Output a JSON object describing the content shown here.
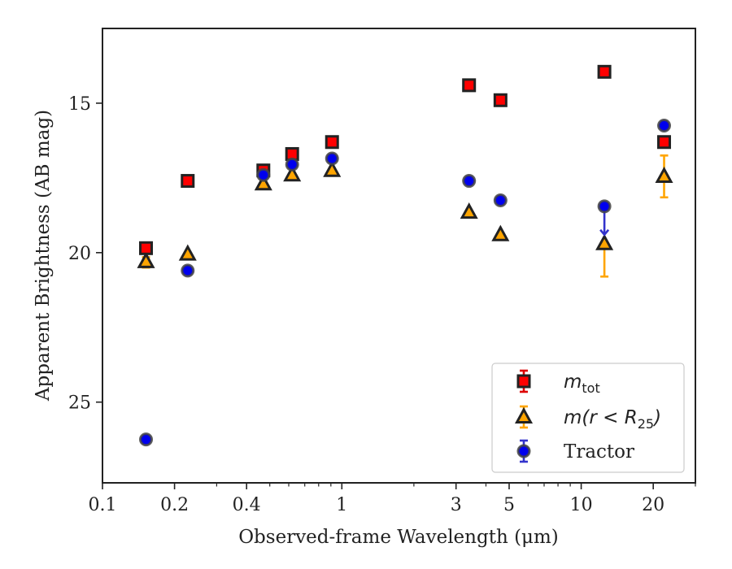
{
  "chart_data": {
    "type": "scatter",
    "title": "",
    "xlabel": "Observed-frame Wavelength (μm)",
    "ylabel": "Apparent Brightness (AB mag)",
    "xscale": "log",
    "xlim": [
      0.1,
      30
    ],
    "ylim": [
      27.7,
      12.5
    ],
    "y_inverted": true,
    "x_ticks": [
      0.1,
      0.2,
      0.4,
      1,
      3,
      5,
      10,
      20
    ],
    "x_tick_labels": [
      "0.1",
      "0.2",
      "0.4",
      "1",
      "3",
      "5",
      "10",
      "20"
    ],
    "y_ticks": [
      15,
      20,
      25
    ],
    "y_tick_labels": [
      "15",
      "20",
      "25"
    ],
    "grid": false,
    "legend_position": "bottom-right",
    "series": [
      {
        "name": "m_tot",
        "legend_main": "m",
        "legend_sub": "tot",
        "marker": "square",
        "fill": "#ff0000",
        "edge": "#222222",
        "errcolor": "#dd0000",
        "points": [
          {
            "x": 0.152,
            "y": 19.85
          },
          {
            "x": 0.227,
            "y": 17.6
          },
          {
            "x": 0.47,
            "y": 17.25
          },
          {
            "x": 0.62,
            "y": 16.7
          },
          {
            "x": 0.91,
            "y": 16.3
          },
          {
            "x": 3.4,
            "y": 14.4
          },
          {
            "x": 4.6,
            "y": 14.9
          },
          {
            "x": 12.5,
            "y": 13.95
          },
          {
            "x": 22.2,
            "y": 16.3
          }
        ]
      },
      {
        "name": "m(r<R25)",
        "legend_text": "m(r < R25)",
        "marker": "triangle",
        "fill": "#ffa500",
        "edge": "#222222",
        "errcolor": "#ffa500",
        "points": [
          {
            "x": 0.152,
            "y": 20.3,
            "yerr_lo": 0.15,
            "yerr_hi": 0.2
          },
          {
            "x": 0.227,
            "y": 20.05
          },
          {
            "x": 0.47,
            "y": 17.7
          },
          {
            "x": 0.62,
            "y": 17.4
          },
          {
            "x": 0.91,
            "y": 17.25
          },
          {
            "x": 3.4,
            "y": 18.65
          },
          {
            "x": 4.6,
            "y": 19.4
          },
          {
            "x": 12.5,
            "y": 19.7,
            "yerr_lo": 0.0,
            "yerr_hi": 1.1
          },
          {
            "x": 22.2,
            "y": 17.45,
            "yerr_lo": 0.7,
            "yerr_hi": 0.7
          }
        ]
      },
      {
        "name": "Tractor",
        "marker": "circle",
        "fill": "#0000ee",
        "edge": "#444444",
        "errcolor": "#3333cc",
        "points": [
          {
            "x": 0.152,
            "y": 26.25
          },
          {
            "x": 0.227,
            "y": 20.6
          },
          {
            "x": 0.47,
            "y": 17.4
          },
          {
            "x": 0.62,
            "y": 17.05
          },
          {
            "x": 0.91,
            "y": 16.85
          },
          {
            "x": 3.4,
            "y": 17.6
          },
          {
            "x": 4.6,
            "y": 18.25
          },
          {
            "x": 12.5,
            "y": 18.45,
            "upper_limit_arrow_to": 19.4
          },
          {
            "x": 22.2,
            "y": 15.75
          }
        ]
      }
    ]
  }
}
